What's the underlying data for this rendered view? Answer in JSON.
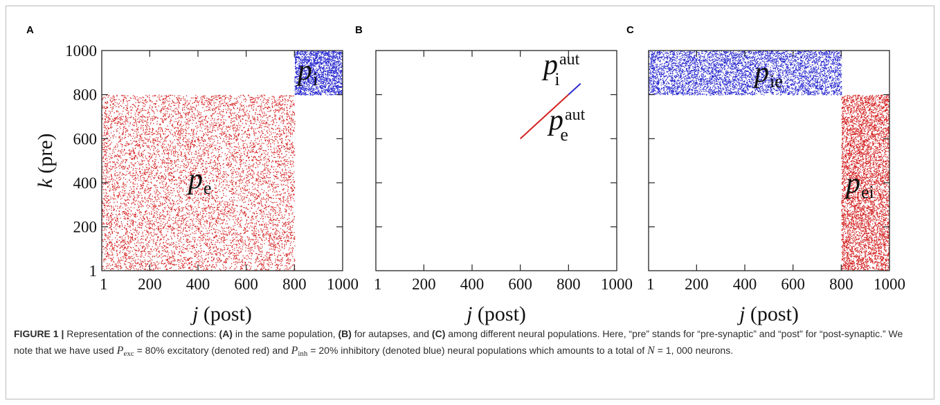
{
  "chart_data": [
    {
      "type": "scatter",
      "panel": "A",
      "xlabel_var": "j",
      "xlabel": "(post)",
      "ylabel_var": "k",
      "ylabel": "(pre)",
      "xlim": [
        1,
        1000
      ],
      "ylim": [
        1,
        1000
      ],
      "x_ticks": [
        "1",
        "200",
        "400",
        "600",
        "800",
        "1000"
      ],
      "y_ticks": [
        "1",
        "200",
        "400",
        "600",
        "800",
        "1000"
      ],
      "regions": [
        {
          "label": "p",
          "sub": "e",
          "color": "#d42020",
          "x": [
            1,
            800
          ],
          "y": [
            1,
            800
          ],
          "density": 0.45
        },
        {
          "label": "p",
          "sub": "i",
          "color": "#2a2ad0",
          "x": [
            800,
            1000
          ],
          "y": [
            800,
            1000
          ],
          "density": 0.45
        }
      ]
    },
    {
      "type": "line",
      "panel": "B",
      "xlabel_var": "j",
      "xlabel": "(post)",
      "xlim": [
        1,
        1000
      ],
      "ylim": [
        1,
        1000
      ],
      "x_ticks": [
        "1",
        "200",
        "400",
        "600",
        "800",
        "1000"
      ],
      "series": [
        {
          "label": "p",
          "sub": "e",
          "sup": "aut",
          "color": "#d42020",
          "x": [
            600,
            800
          ],
          "y": [
            600,
            800
          ]
        },
        {
          "label": "p",
          "sub": "i",
          "sup": "aut",
          "color": "#2a2ad0",
          "x": [
            800,
            850
          ],
          "y": [
            800,
            850
          ]
        }
      ]
    },
    {
      "type": "scatter",
      "panel": "C",
      "xlabel_var": "j",
      "xlabel": "(post)",
      "xlim": [
        1,
        1000
      ],
      "ylim": [
        1,
        1000
      ],
      "x_ticks": [
        "1",
        "200",
        "400",
        "600",
        "800",
        "1000"
      ],
      "regions": [
        {
          "label": "p",
          "sub": "ie",
          "color": "#2a2ad0",
          "x": [
            1,
            800
          ],
          "y": [
            800,
            1000
          ],
          "density": 0.45
        },
        {
          "label": "p",
          "sub": "ei",
          "color": "#d42020",
          "x": [
            800,
            1000
          ],
          "y": [
            1,
            800
          ],
          "density": 0.45
        }
      ]
    }
  ],
  "caption": {
    "figure_label": "FIGURE 1 |",
    "t1": " Representation of the connections: ",
    "a": "(A)",
    "t2": " in the same population, ",
    "b": "(B)",
    "t3": " for autapses, and ",
    "c": "(C)",
    "t4": " among different neural populations. Here, “pre” stands for “pre-synaptic” and “post” for “post-synaptic.” We note that we have used ",
    "pexc_var": "P",
    "pexc_sub": "exc",
    "pexc_val": " = 80%",
    "t5": " excitatory (denoted red) and ",
    "pinh_var": "P",
    "pinh_sub": "inh",
    "pinh_val": " = 20%",
    "t6": " inhibitory (denoted blue) neural populations which amounts to a total of ",
    "n_var": "N",
    "n_val": " = 1, 000",
    "t7": " neurons."
  }
}
